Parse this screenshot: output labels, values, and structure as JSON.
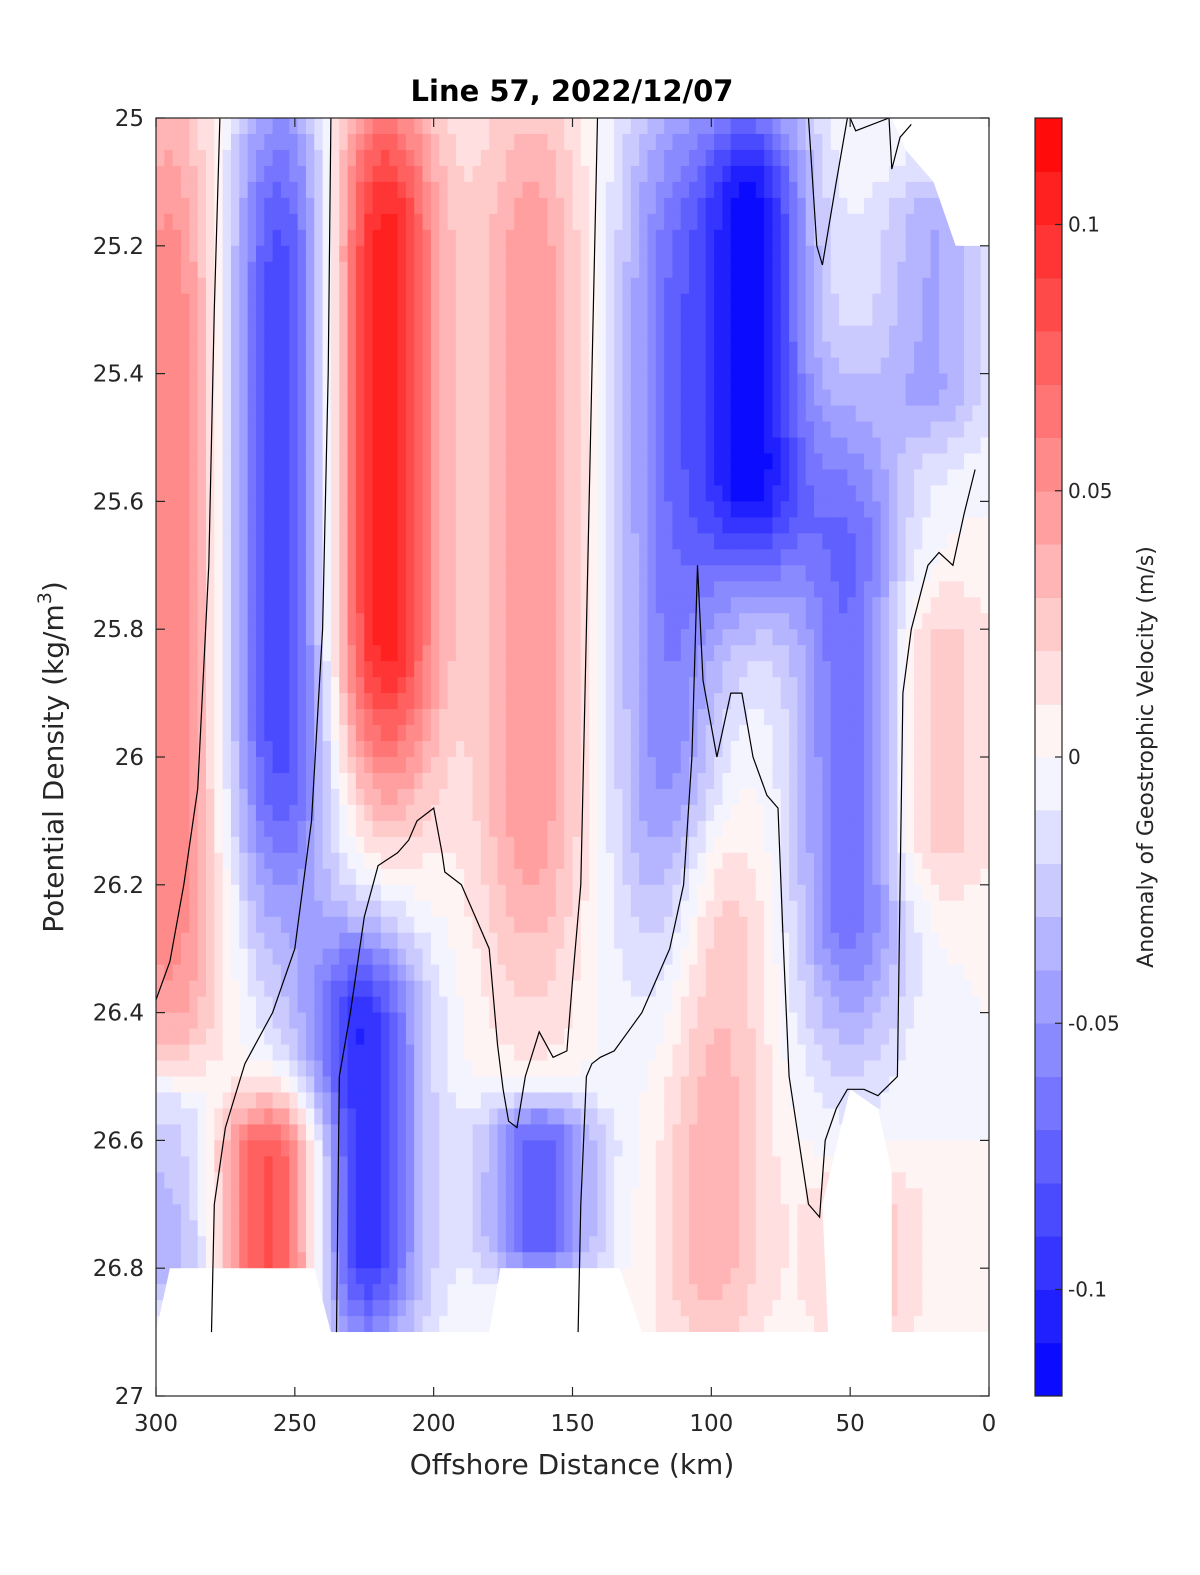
{
  "chart_data": {
    "type": "heatmap",
    "title": "Line 57, 2022/12/07",
    "xlabel": "Offshore Distance (km)",
    "ylabel": "Potential Density (kg/m",
    "ylabel_sup": "3",
    "ylabel_close": ")",
    "colorbar_label": "Anomaly of Geostrophic Velocity (m/s)",
    "xlim": [
      300,
      0
    ],
    "ylim": [
      25,
      27
    ],
    "y_reversed": true,
    "x_reversed": true,
    "xticks": [
      300,
      250,
      200,
      150,
      100,
      50,
      0
    ],
    "yticks": [
      25,
      25.2,
      25.4,
      25.6,
      25.8,
      26,
      26.2,
      26.4,
      26.6,
      26.8,
      27
    ],
    "ytick_labels": [
      "25",
      "25.2",
      "25.4",
      "25.6",
      "25.8",
      "26",
      "26.2",
      "26.4",
      "26.6",
      "26.8",
      "27"
    ],
    "clim": [
      -0.12,
      0.12
    ],
    "colorbar_ticks": [
      -0.1,
      -0.05,
      0,
      0.05,
      0.1
    ],
    "colorbar_tick_labels": [
      "-0.1",
      "-0.05",
      "0",
      "0.05",
      "0.1"
    ],
    "colorbar_levels": 24,
    "colormap": {
      "negative": "#0000ff",
      "zero": "#ffffff",
      "positive": "#ff0000"
    },
    "zero_contour_color": "#000000",
    "features": [
      {
        "x": 295,
        "ytop": 25,
        "ybot": 26.5,
        "value": 0.06
      },
      {
        "x": 255,
        "ytop": 25,
        "ybot": 26.2,
        "value": -0.09
      },
      {
        "x": 258,
        "ytop": 26.55,
        "ybot": 26.88,
        "value": 0.09
      },
      {
        "x": 218,
        "ytop": 25,
        "ybot": 26.0,
        "value": 0.11
      },
      {
        "x": 225,
        "ytop": 26.3,
        "ybot": 26.9,
        "value": -0.1
      },
      {
        "x": 165,
        "ytop": 25,
        "ybot": 26.3,
        "value": 0.05
      },
      {
        "x": 162,
        "ytop": 26.55,
        "ybot": 26.8,
        "value": -0.08
      },
      {
        "x": 115,
        "ytop": 25,
        "ybot": 26.3,
        "value": -0.06
      },
      {
        "x": 85,
        "ytop": 25,
        "ybot": 25.7,
        "value": -0.11
      },
      {
        "x": 100,
        "ytop": 26.1,
        "ybot": 26.9,
        "value": 0.04
      },
      {
        "x": 50,
        "ytop": 25.5,
        "ybot": 26.4,
        "value": -0.07
      },
      {
        "x": 20,
        "ytop": 25.1,
        "ybot": 25.5,
        "value": -0.04
      },
      {
        "x": 20,
        "ytop": 25.75,
        "ybot": 26.2,
        "value": 0.03
      },
      {
        "x": 45,
        "ytop": 26.65,
        "ybot": 26.9,
        "value": 0.03
      },
      {
        "x": 295,
        "ytop": 26.5,
        "ybot": 26.85,
        "value": -0.05
      }
    ]
  }
}
